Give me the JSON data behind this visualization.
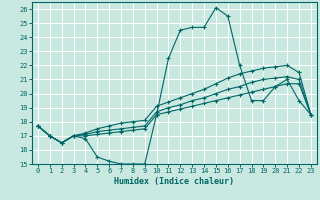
{
  "xlabel": "Humidex (Indice chaleur)",
  "bg_color": "#c8e8e0",
  "grid_color": "#b0d8d0",
  "line_color": "#006666",
  "xlim": [
    -0.5,
    23.5
  ],
  "ylim": [
    15,
    26.5
  ],
  "yticks": [
    15,
    16,
    17,
    18,
    19,
    20,
    21,
    22,
    23,
    24,
    25,
    26
  ],
  "xticks": [
    0,
    1,
    2,
    3,
    4,
    5,
    6,
    7,
    8,
    9,
    10,
    11,
    12,
    13,
    14,
    15,
    16,
    17,
    18,
    19,
    20,
    21,
    22,
    23
  ],
  "curve1_x": [
    0,
    1,
    2,
    3,
    4,
    5,
    6,
    7,
    8,
    9,
    10,
    11,
    12,
    13,
    14,
    15,
    16,
    17,
    18,
    19,
    20,
    21,
    22,
    23
  ],
  "curve1_y": [
    17.7,
    17.0,
    16.5,
    17.0,
    16.8,
    15.5,
    15.2,
    15.0,
    15.0,
    15.0,
    18.5,
    22.5,
    24.5,
    24.7,
    24.7,
    26.1,
    25.5,
    22.0,
    19.5,
    19.5,
    20.5,
    21.0,
    19.5,
    18.5
  ],
  "curve2_x": [
    0,
    1,
    2,
    3,
    4,
    5,
    6,
    7,
    8,
    9,
    10,
    11,
    12,
    13,
    14,
    15,
    16,
    17,
    18,
    19,
    20,
    21,
    22,
    23
  ],
  "curve2_y": [
    17.7,
    17.0,
    16.5,
    17.0,
    17.0,
    17.1,
    17.2,
    17.3,
    17.4,
    17.5,
    18.5,
    18.7,
    18.9,
    19.1,
    19.3,
    19.5,
    19.7,
    19.9,
    20.1,
    20.3,
    20.5,
    20.7,
    20.7,
    18.5
  ],
  "curve3_x": [
    0,
    1,
    2,
    3,
    4,
    5,
    6,
    7,
    8,
    9,
    10,
    11,
    12,
    13,
    14,
    15,
    16,
    17,
    18,
    19,
    20,
    21,
    22,
    23
  ],
  "curve3_y": [
    17.7,
    17.0,
    16.5,
    17.0,
    17.1,
    17.3,
    17.4,
    17.5,
    17.6,
    17.7,
    18.7,
    19.0,
    19.2,
    19.5,
    19.7,
    20.0,
    20.3,
    20.5,
    20.8,
    21.0,
    21.1,
    21.2,
    21.0,
    18.5
  ],
  "curve4_x": [
    0,
    1,
    2,
    3,
    4,
    5,
    6,
    7,
    8,
    9,
    10,
    11,
    12,
    13,
    14,
    15,
    16,
    17,
    18,
    19,
    20,
    21,
    22,
    23
  ],
  "curve4_y": [
    17.7,
    17.0,
    16.5,
    17.0,
    17.2,
    17.5,
    17.7,
    17.9,
    18.0,
    18.1,
    19.1,
    19.4,
    19.7,
    20.0,
    20.3,
    20.7,
    21.1,
    21.4,
    21.6,
    21.8,
    21.9,
    22.0,
    21.5,
    18.5
  ]
}
